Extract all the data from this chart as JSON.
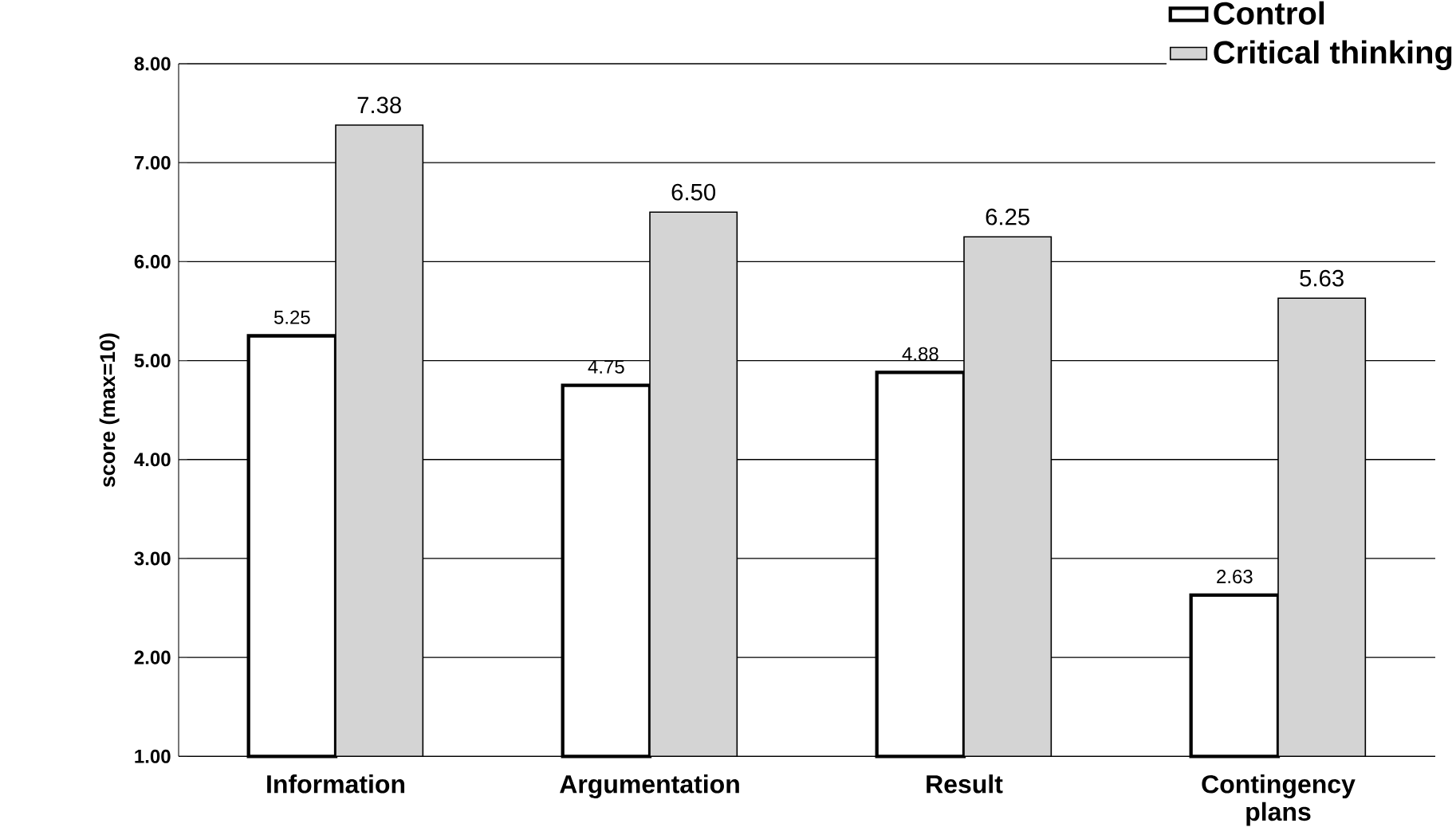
{
  "chart_data": {
    "type": "bar",
    "ylabel": "score (max=10)",
    "categories": [
      "Information",
      "Argumentation",
      "Result",
      "Contingency plans"
    ],
    "series": [
      {
        "name": "Control",
        "color": "#ffffff",
        "values": [
          5.25,
          4.75,
          4.88,
          2.63
        ],
        "value_labels": [
          "5.25",
          "4.75",
          "4.88",
          "2.63"
        ]
      },
      {
        "name": "Critical thinking",
        "color": "#d4d4d4",
        "values": [
          7.38,
          6.5,
          6.25,
          5.63
        ],
        "value_labels": [
          "7.38",
          "6.50",
          "6.25",
          "5.63"
        ]
      }
    ],
    "ylim": [
      1,
      8
    ],
    "yticks": [
      {
        "value": 1,
        "label": "1.00"
      },
      {
        "value": 2,
        "label": "2.00"
      },
      {
        "value": 3,
        "label": "3.00"
      },
      {
        "value": 4,
        "label": "4.00"
      },
      {
        "value": 5,
        "label": "5.00"
      },
      {
        "value": 6,
        "label": "6.00"
      },
      {
        "value": 7,
        "label": "7.00"
      },
      {
        "value": 8,
        "label": "8.00"
      }
    ],
    "grid": "y",
    "legend": "top right"
  }
}
